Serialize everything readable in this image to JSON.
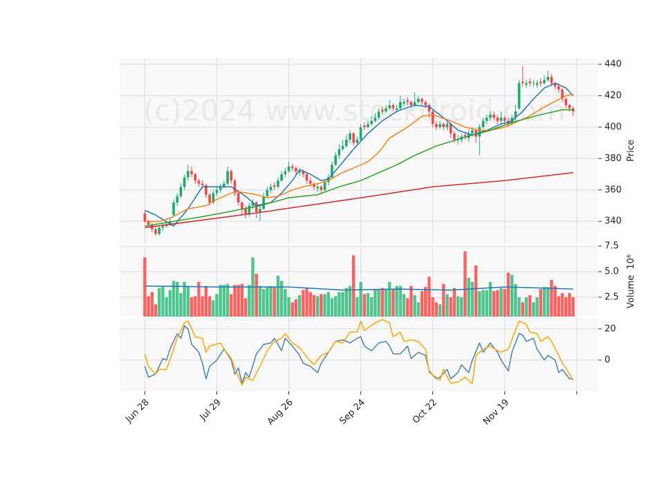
{
  "chart_data": [
    {
      "type": "candlestick",
      "xlim": [
        -7,
        126
      ],
      "ylim": [
        326,
        444
      ],
      "yticks": [
        340,
        360,
        380,
        400,
        420,
        440
      ],
      "ylabel": "Price",
      "grid": true,
      "up_color": "#1daa6e",
      "down_color": "#f0474a",
      "watermark": "(c)2024 www.stockdroid.com",
      "open": [
        345,
        340,
        338,
        335,
        332,
        336,
        337,
        338,
        344,
        352,
        356,
        362,
        368,
        372,
        370,
        366,
        364,
        363,
        357,
        352,
        358,
        360,
        362,
        364,
        372,
        366,
        358,
        352,
        348,
        345,
        350,
        352,
        346,
        348,
        356,
        360,
        363,
        362,
        366,
        370,
        372,
        375,
        374,
        371,
        372,
        370,
        366,
        364,
        361,
        362,
        360,
        365,
        368,
        376,
        382,
        386,
        388,
        392,
        396,
        390,
        392,
        401,
        400,
        402,
        404,
        406,
        411,
        410,
        412,
        414,
        411,
        412,
        415,
        417,
        416,
        414,
        416,
        418,
        416,
        414,
        410,
        402,
        400,
        402,
        400,
        402,
        396,
        392,
        392,
        395,
        393,
        396,
        398,
        394,
        400,
        404,
        406,
        408,
        406,
        404,
        406,
        404,
        402,
        406,
        412,
        429,
        427,
        429,
        428,
        427,
        429,
        428,
        430,
        432,
        428,
        426,
        424,
        418,
        414,
        412
      ],
      "high": [
        347,
        341,
        339,
        336,
        337,
        339,
        340,
        342,
        354,
        358,
        364,
        370,
        376,
        375,
        371,
        367,
        366,
        364,
        358,
        360,
        362,
        364,
        366,
        375,
        373,
        367,
        360,
        353,
        350,
        352,
        354,
        353,
        350,
        358,
        362,
        364,
        365,
        368,
        372,
        374,
        378,
        377,
        375,
        374,
        373,
        371,
        368,
        365,
        364,
        363,
        367,
        370,
        378,
        384,
        389,
        392,
        395,
        398,
        397,
        394,
        402,
        403,
        404,
        407,
        409,
        412,
        413,
        414,
        417,
        415,
        414,
        420,
        418,
        419,
        417,
        422,
        420,
        419,
        417,
        415,
        411,
        404,
        404,
        403,
        404,
        403,
        398,
        395,
        396,
        397,
        398,
        400,
        399,
        402,
        406,
        408,
        410,
        410,
        408,
        410,
        407,
        406,
        408,
        414,
        430,
        439,
        430,
        431,
        430,
        430,
        431,
        433,
        436,
        434,
        429,
        428,
        425,
        419,
        415,
        413
      ],
      "low": [
        339,
        336,
        333,
        331,
        331,
        334,
        336,
        337,
        343,
        350,
        355,
        360,
        366,
        368,
        364,
        362,
        361,
        355,
        350,
        351,
        356,
        358,
        361,
        363,
        364,
        356,
        350,
        344,
        342,
        343,
        348,
        342,
        340,
        347,
        355,
        358,
        360,
        361,
        365,
        368,
        371,
        372,
        370,
        369,
        368,
        364,
        362,
        360,
        359,
        357,
        359,
        363,
        367,
        375,
        380,
        385,
        387,
        390,
        388,
        389,
        391,
        398,
        399,
        401,
        403,
        405,
        408,
        409,
        411,
        410,
        409,
        411,
        413,
        414,
        412,
        413,
        415,
        414,
        412,
        406,
        400,
        398,
        399,
        398,
        398,
        393,
        390,
        389,
        390,
        392,
        391,
        394,
        390,
        382,
        399,
        402,
        404,
        404,
        402,
        402,
        401,
        400,
        401,
        404,
        411,
        426,
        425,
        426,
        426,
        425,
        426,
        427,
        429,
        426,
        424,
        422,
        416,
        412,
        410,
        407
      ],
      "close": [
        340,
        338,
        335,
        332,
        336,
        337,
        338,
        340,
        352,
        356,
        362,
        368,
        372,
        370,
        366,
        364,
        363,
        357,
        352,
        358,
        360,
        362,
        364,
        372,
        366,
        358,
        352,
        348,
        345,
        350,
        352,
        346,
        348,
        356,
        360,
        362,
        362,
        366,
        370,
        372,
        375,
        374,
        372,
        372,
        370,
        366,
        364,
        362,
        362,
        360,
        365,
        368,
        376,
        382,
        386,
        388,
        392,
        396,
        390,
        392,
        400,
        400,
        402,
        404,
        406,
        410,
        410,
        412,
        414,
        412,
        412,
        416,
        416,
        416,
        414,
        416,
        418,
        416,
        414,
        410,
        402,
        400,
        402,
        400,
        402,
        396,
        392,
        392,
        394,
        394,
        396,
        398,
        394,
        400,
        404,
        406,
        408,
        406,
        404,
        406,
        404,
        402,
        406,
        410,
        428,
        428,
        428,
        428,
        428,
        428,
        428,
        430,
        432,
        428,
        426,
        424,
        418,
        414,
        412,
        410
      ],
      "series": [
        {
          "color": "#1f77b4",
          "x": [
            0,
            3,
            8,
            12,
            16,
            20,
            24,
            28,
            31,
            35,
            38,
            41,
            43,
            46,
            49,
            51,
            54,
            58,
            62,
            66,
            70,
            75,
            79,
            83,
            87,
            91,
            95,
            99,
            102,
            105,
            108,
            111,
            114,
            117,
            119
          ],
          "values": [
            347,
            344,
            337,
            348,
            362,
            362,
            362,
            356,
            350,
            352,
            358,
            366,
            373,
            370,
            366,
            367,
            375,
            386,
            396,
            404,
            410,
            414,
            413,
            406,
            398,
            395,
            398,
            402,
            404,
            410,
            418,
            425,
            428,
            425,
            420
          ]
        },
        {
          "color": "#ff7f0e",
          "x": [
            0,
            4,
            7,
            12,
            17,
            20,
            24,
            26,
            31,
            34,
            37,
            41,
            44,
            48,
            51,
            54,
            58,
            62,
            65,
            68,
            73,
            77,
            80,
            85,
            89,
            93,
            96,
            100,
            106,
            112,
            117,
            119
          ],
          "values": [
            340,
            340,
            342,
            348,
            350,
            354,
            358,
            359,
            357,
            355,
            356,
            360,
            362,
            364,
            366,
            370,
            374,
            378,
            384,
            393,
            400,
            407,
            408,
            404,
            400,
            398,
            398,
            400,
            406,
            414,
            420,
            421
          ]
        },
        {
          "color": "#2ca02c",
          "x": [
            0,
            8,
            16,
            23,
            32,
            40,
            48,
            54,
            60,
            64,
            70,
            75,
            81,
            88,
            96,
            102,
            110,
            116,
            119
          ],
          "values": [
            337,
            340,
            343,
            346,
            350,
            355,
            357,
            362,
            366,
            370,
            376,
            382,
            388,
            393,
            398,
            403,
            408,
            411,
            411
          ]
        },
        {
          "color": "#d62728",
          "x": [
            0,
            30,
            60,
            80,
            100,
            119
          ],
          "values": [
            336,
            345,
            355,
            362,
            366,
            371
          ]
        }
      ]
    },
    {
      "type": "bar",
      "xlim": [
        -7,
        126
      ],
      "ylim": [
        0.6,
        7.5
      ],
      "yticks": [
        2.5,
        {
          "value": 5,
          "label": "5.0"
        },
        7.5
      ],
      "ylabel": "Volume",
      "ylabel_unit": "10⁶",
      "grid": true,
      "up_color": "#4ec48e",
      "down_color": "#ff6161",
      "values": [
        6.4,
        2.6,
        3.0,
        1.8,
        3.4,
        3.5,
        2.5,
        3.2,
        4.1,
        4.0,
        2.9,
        4.0,
        3.6,
        2.5,
        2.6,
        4.0,
        2.6,
        3.6,
        2.6,
        2.2,
        2.8,
        3.7,
        3.7,
        3.8,
        2.8,
        3.7,
        3.7,
        3.8,
        2.4,
        3.7,
        6.4,
        4.8,
        3.6,
        3.3,
        3.5,
        3.6,
        3.5,
        4.6,
        4.1,
        3.3,
        2.5,
        2.0,
        2.3,
        2.7,
        3.2,
        3.4,
        3.0,
        2.7,
        2.6,
        2.8,
        2.8,
        3.0,
        2.4,
        2.6,
        3.0,
        3.0,
        3.4,
        3.6,
        6.6,
        2.5,
        4.0,
        2.8,
        2.9,
        2.5,
        3.3,
        3.3,
        3.4,
        3.3,
        4.0,
        3.3,
        3.6,
        3.6,
        2.8,
        2.4,
        3.6,
        2.7,
        2.0,
        3.1,
        3.5,
        4.5,
        2.5,
        2.0,
        1.8,
        3.8,
        2.8,
        2.5,
        3.4,
        2.6,
        2.5,
        7.0,
        4.4,
        4.0,
        5.6,
        3.1,
        3.2,
        3.2,
        4.0,
        3.1,
        3.2,
        3.4,
        3.3,
        4.9,
        4.7,
        3.8,
        2.5,
        2.0,
        2.5,
        2.7,
        2.0,
        2.5,
        3.3,
        3.5,
        3.5,
        4.2,
        3.6,
        2.6,
        2.9,
        2.5,
        2.9,
        2.5
      ],
      "series": [
        {
          "color": "#1f77b4",
          "x": [
            0,
            20,
            40,
            55,
            70,
            85,
            100,
            110,
            119
          ],
          "values": [
            3.6,
            3.5,
            3.5,
            3.2,
            3.3,
            3.2,
            3.5,
            3.4,
            3.3
          ]
        }
      ]
    },
    {
      "type": "line",
      "xlim": [
        -7,
        126
      ],
      "ylim": [
        -20,
        27
      ],
      "yticks": [
        0,
        20
      ],
      "grid": true,
      "xticks": [
        {
          "value": 0,
          "label": "Jun 28"
        },
        {
          "value": 20,
          "label": "Jul 29"
        },
        {
          "value": 40,
          "label": "Aug 26"
        },
        {
          "value": 60,
          "label": "Sep 24"
        },
        {
          "value": 80,
          "label": "Oct 22"
        },
        {
          "value": 100,
          "label": "Nov 19"
        },
        {
          "value": 120,
          "label": null
        }
      ],
      "series": [
        {
          "color": "#4682b4",
          "x": [
            0,
            1,
            3,
            5,
            6,
            7,
            9,
            10,
            11,
            12,
            13,
            15,
            16,
            17,
            18,
            20,
            22,
            24,
            25,
            26,
            27,
            28,
            29,
            31,
            33,
            35,
            36,
            38,
            39,
            41,
            43,
            44,
            46,
            48,
            49,
            51,
            53,
            55,
            57,
            59,
            60,
            61,
            63,
            65,
            67,
            68,
            69,
            71,
            73,
            74,
            76,
            78,
            79,
            81,
            82,
            84,
            85,
            87,
            88,
            90,
            91,
            93,
            94,
            96,
            98,
            99,
            101,
            102,
            104,
            105,
            106,
            108,
            109,
            111,
            112,
            114,
            115,
            116,
            118,
            119
          ],
          "values": [
            -4,
            -11,
            -9,
            1,
            0,
            7,
            17,
            14,
            22,
            20,
            10,
            5,
            -2,
            -12,
            -4,
            0,
            7,
            0,
            -9,
            -5,
            -15,
            -8,
            -11,
            4,
            10,
            11,
            14,
            6,
            14,
            9,
            3,
            -2,
            -4,
            -8,
            -2,
            5,
            12,
            13,
            11,
            14,
            15,
            9,
            6,
            11,
            12,
            9,
            4,
            4,
            9,
            1,
            5,
            3,
            -7,
            -12,
            -11,
            -6,
            -12,
            -8,
            -3,
            -8,
            0,
            11,
            5,
            11,
            5,
            0,
            -7,
            5,
            17,
            16,
            12,
            14,
            7,
            0,
            3,
            0,
            -8,
            -6,
            -12,
            -12
          ]
        },
        {
          "color": "#ffa500",
          "x": [
            0,
            1,
            3,
            4,
            6,
            8,
            9,
            11,
            12,
            14,
            16,
            17,
            18,
            21,
            22,
            24,
            25,
            27,
            28,
            30,
            32,
            34,
            36,
            38,
            39,
            41,
            43,
            45,
            47,
            49,
            51,
            53,
            55,
            57,
            59,
            60,
            61,
            64,
            66,
            68,
            69,
            71,
            72,
            74,
            76,
            78,
            79,
            81,
            82,
            83,
            85,
            87,
            89,
            91,
            92,
            94,
            96,
            98,
            99,
            101,
            103,
            104,
            106,
            107,
            109,
            110,
            112,
            113,
            115,
            116,
            117,
            119
          ],
          "values": [
            4,
            -4,
            -9,
            -6,
            -6,
            7,
            14,
            24,
            25,
            15,
            14,
            5,
            9,
            11,
            7,
            1,
            -5,
            -16,
            -11,
            -13,
            -4,
            6,
            12,
            14,
            17,
            11,
            8,
            2,
            -3,
            3,
            5,
            12,
            11,
            18,
            18,
            25,
            19,
            24,
            26,
            24,
            15,
            18,
            12,
            13,
            12,
            7,
            -8,
            -11,
            -13,
            -6,
            -15,
            -14,
            -11,
            -15,
            3,
            7,
            9,
            6,
            5,
            7,
            19,
            25,
            23,
            18,
            17,
            12,
            15,
            12,
            3,
            -2,
            -5,
            -13
          ]
        }
      ]
    }
  ]
}
